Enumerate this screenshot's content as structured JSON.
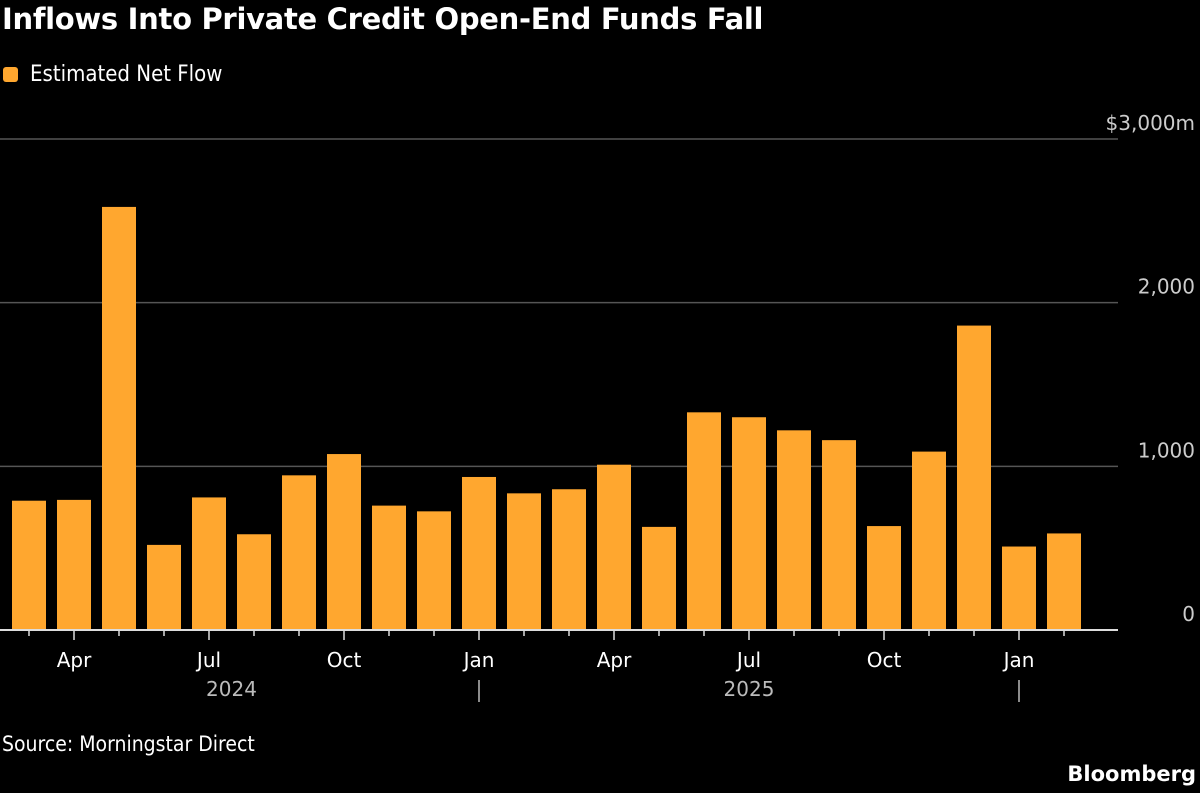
{
  "title": "Inflows Into Private Credit Open-End Funds Fall",
  "source": "Source: Morningstar Direct",
  "logo": "Bloomberg",
  "colors": {
    "bar": "#FFA72F",
    "background": "#000000",
    "grid": "#555555"
  },
  "chart_data": {
    "type": "bar",
    "title": "Inflows Into Private Credit Open-End Funds Fall",
    "legend": [
      "Estimated Net Flow"
    ],
    "legend_placement": "top-left",
    "grid": true,
    "ylim": [
      0,
      3000
    ],
    "yticks": [
      0,
      1000,
      2000,
      3000
    ],
    "ytick_labels": [
      "0",
      "1,000",
      "2,000",
      "$3,000m"
    ],
    "categories": [
      "Mar 2024",
      "Apr 2024",
      "May 2024",
      "Jun 2024",
      "Jul 2024",
      "Aug 2024",
      "Sep 2024",
      "Oct 2024",
      "Nov 2024",
      "Dec 2024",
      "Jan 2025",
      "Feb 2025",
      "Mar 2025",
      "Apr 2025",
      "May 2025",
      "Jun 2025",
      "Jul 2025",
      "Aug 2025",
      "Sep 2025",
      "Oct 2025",
      "Nov 2025",
      "Dec 2025",
      "Jan 2026",
      "Feb 2026"
    ],
    "xtick_labels": [
      {
        "index": 1,
        "label": "Apr"
      },
      {
        "index": 4,
        "label": "Jul"
      },
      {
        "index": 7,
        "label": "Oct"
      },
      {
        "index": 10,
        "label": "Jan"
      },
      {
        "index": 13,
        "label": "Apr"
      },
      {
        "index": 16,
        "label": "Jul"
      },
      {
        "index": 19,
        "label": "Oct"
      },
      {
        "index": 22,
        "label": "Jan"
      }
    ],
    "year_labels": [
      {
        "index": 4.5,
        "label": "2024"
      },
      {
        "index": 16,
        "label": "2025"
      }
    ],
    "year_separators": [
      10,
      22
    ],
    "series": [
      {
        "name": "Estimated Net Flow",
        "values": [
          790,
          795,
          2585,
          520,
          810,
          585,
          945,
          1075,
          760,
          725,
          935,
          835,
          860,
          1010,
          630,
          1330,
          1300,
          1220,
          1160,
          635,
          1090,
          1860,
          510,
          590
        ]
      }
    ]
  }
}
